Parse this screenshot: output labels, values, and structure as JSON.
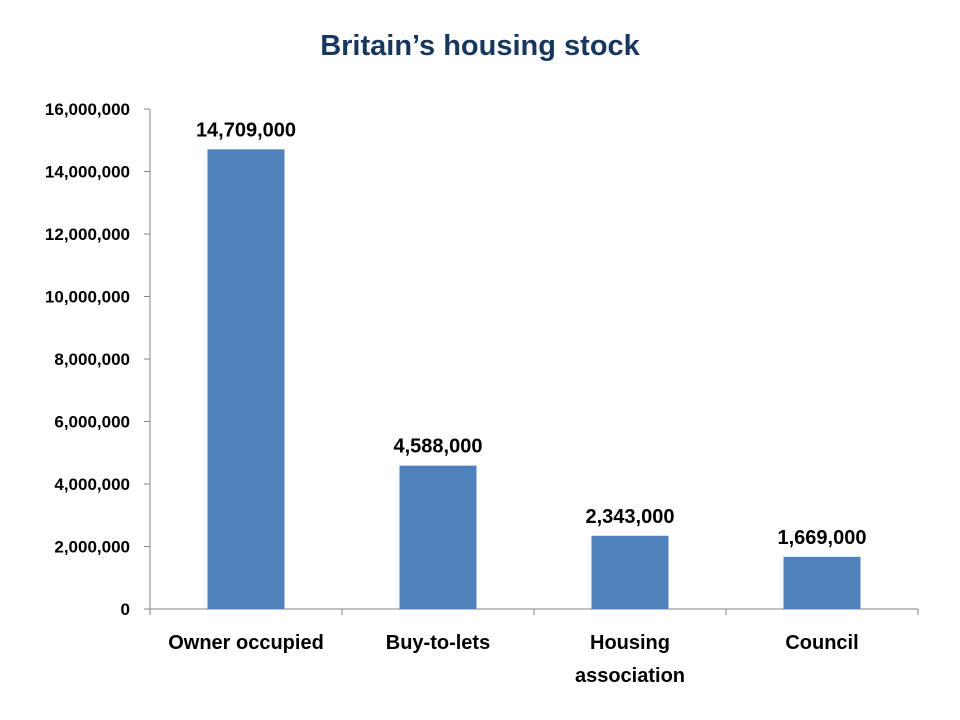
{
  "chart_data": {
    "type": "bar",
    "title": "Britain’s housing stock",
    "xlabel": "",
    "ylabel": "",
    "categories": [
      [
        "Owner occupied"
      ],
      [
        "Buy-to-lets"
      ],
      [
        "Housing",
        "association"
      ],
      [
        "Council"
      ]
    ],
    "values": [
      14709000,
      4588000,
      2343000,
      1669000
    ],
    "data_labels": [
      "14,709,000",
      "4,588,000",
      "2,343,000",
      "1,669,000"
    ],
    "ylim": [
      0,
      16000000
    ],
    "yticks": [
      0,
      2000000,
      4000000,
      6000000,
      8000000,
      10000000,
      12000000,
      14000000,
      16000000
    ],
    "ytick_labels": [
      "0",
      "2,000,000",
      "4,000,000",
      "6,000,000",
      "8,000,000",
      "10,000,000",
      "12,000,000",
      "14,000,000",
      "16,000,000"
    ],
    "grid": false,
    "legend": "none",
    "bar_color": "#4f81bd",
    "title_color": "#17375e"
  }
}
